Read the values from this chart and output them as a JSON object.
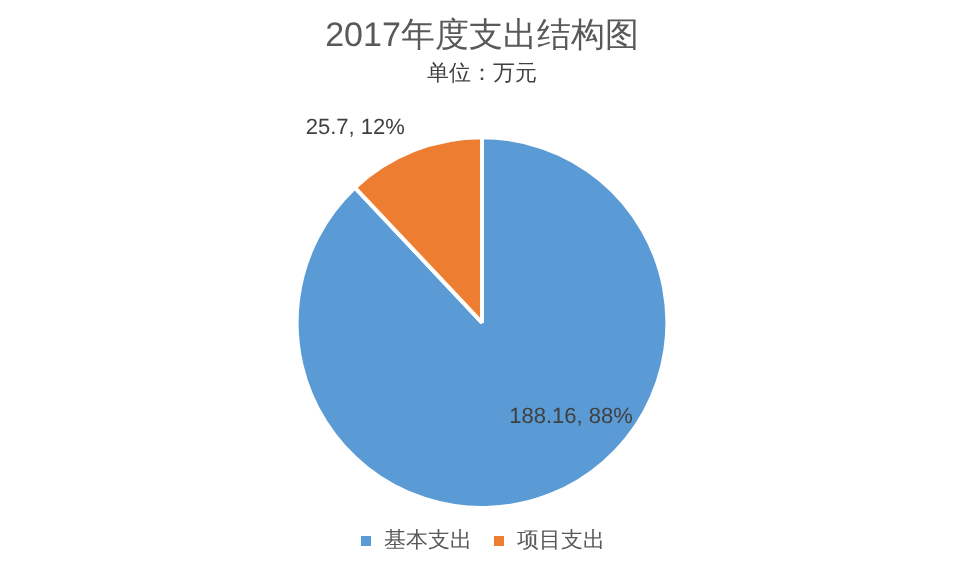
{
  "chart_data": {
    "type": "pie",
    "title": "2017年度支出结构图",
    "subtitle": "单位：万元",
    "categories": [
      "基本支出",
      "项目支出"
    ],
    "values": [
      188.16,
      25.7
    ],
    "colors": [
      "#5b9bd5",
      "#ed7d31"
    ],
    "value_labels": [
      "188.16, 88%",
      "25.7, 12%"
    ],
    "legend": "bottom"
  }
}
